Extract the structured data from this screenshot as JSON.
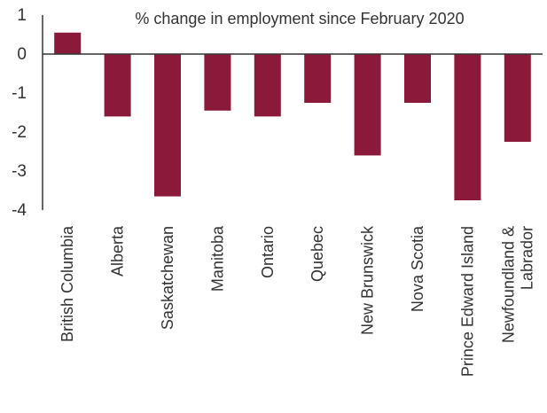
{
  "chart_data": {
    "type": "bar",
    "title": "% change in employment since February 2020",
    "xlabel": "",
    "ylabel": "",
    "ylim": [
      -4,
      1
    ],
    "yticks": [
      1,
      0,
      -1,
      -2,
      -3,
      -4
    ],
    "categories": [
      [
        "British Columbia"
      ],
      [
        "Alberta"
      ],
      [
        "Saskatchewan"
      ],
      [
        "Manitoba"
      ],
      [
        "Ontario"
      ],
      [
        "Quebec"
      ],
      [
        "New Brunswick"
      ],
      [
        "Nova Scotia"
      ],
      [
        "Prince Edward Island"
      ],
      [
        "Newfoundland &",
        "Labrador"
      ]
    ],
    "values": [
      0.55,
      -1.6,
      -3.65,
      -1.45,
      -1.6,
      -1.25,
      -2.6,
      -1.25,
      -3.75,
      -2.25
    ],
    "grid": false,
    "bar_color": "#8b1a3a",
    "axis_color": "#333333"
  }
}
